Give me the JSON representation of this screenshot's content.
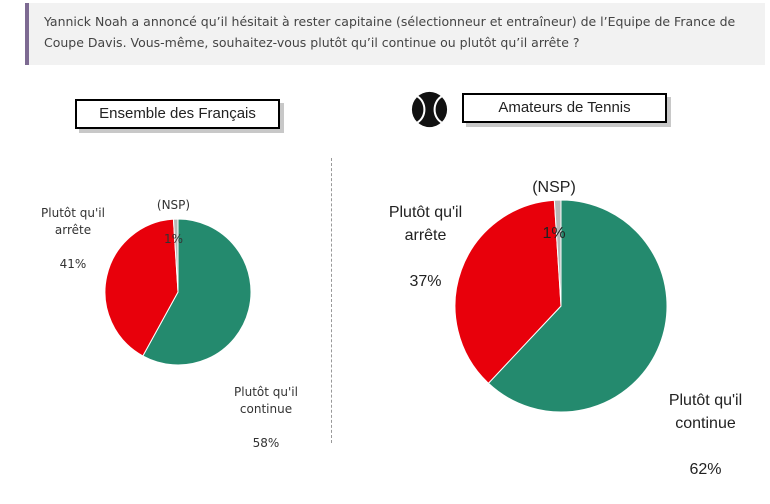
{
  "question": "Yannick Noah a annoncé qu’il hésitait à rester capitaine (sélectionneur et entraîneur) de l’Equipe de France de Coupe Davis. Vous-même, souhaitez-vous plutôt qu’il continue ou plutôt qu’il arrête ?",
  "icons": {
    "tennis_ball": "tennis-ball-icon"
  },
  "colors": {
    "continue": "#248a6e",
    "arrete": "#e8000b",
    "nsp": "#b7b7b7"
  },
  "chart_data": [
    {
      "type": "pie",
      "title": "Ensemble des Français",
      "slices": [
        {
          "label": "Plutôt qu'il continue",
          "value": 58,
          "display": "58%"
        },
        {
          "label": "Plutôt qu'il arrête",
          "value": 41,
          "display": "41%"
        },
        {
          "label": "(NSP)",
          "value": 1,
          "display": "1%"
        }
      ]
    },
    {
      "type": "pie",
      "title": "Amateurs de Tennis",
      "slices": [
        {
          "label": "Plutôt qu'il continue",
          "value": 62,
          "display": "62%"
        },
        {
          "label": "Plutôt qu'il arrête",
          "value": 37,
          "display": "37%"
        },
        {
          "label": "(NSP)",
          "value": 1,
          "display": "1%"
        }
      ]
    }
  ]
}
